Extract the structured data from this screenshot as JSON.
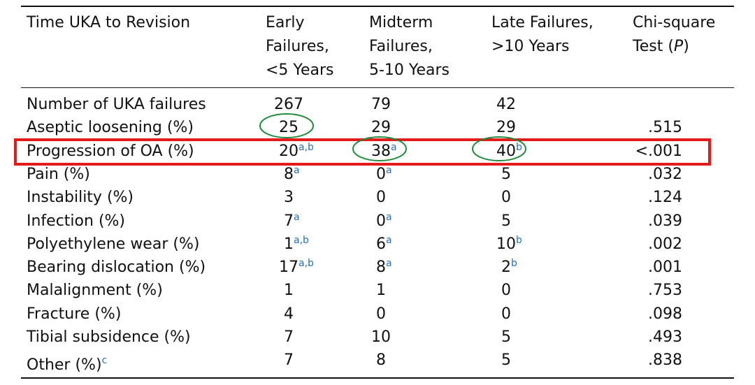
{
  "table": {
    "header": [
      [
        "Time UKA to Revision"
      ],
      [
        "Early",
        "Failures,",
        "<5 Years"
      ],
      [
        "Midterm",
        "Failures,",
        "5-10 Years"
      ],
      [
        "Late Failures,",
        ">10 Years"
      ],
      [
        "Chi-square",
        [
          "Test (",
          "P",
          ")"
        ]
      ]
    ],
    "rows": [
      {
        "label": "Number of UKA failures",
        "cells": [
          {
            "value": 267
          },
          {
            "value": 79
          },
          {
            "value": 42
          }
        ]
      },
      {
        "label": "Aseptic loosening (%)",
        "cells": [
          {
            "value": 25
          },
          {
            "value": 29
          },
          {
            "value": 29
          }
        ],
        "p": ".515"
      },
      {
        "label": "Progression of OA (%)",
        "cells": [
          {
            "value": 20,
            "sup": "a,b"
          },
          {
            "value": 38,
            "sup": "a"
          },
          {
            "value": 40,
            "sup": "b"
          }
        ],
        "p": "<.001"
      },
      {
        "label": "Pain (%)",
        "cells": [
          {
            "value": 8,
            "sup": "a"
          },
          {
            "value": 0,
            "sup": "a"
          },
          {
            "value": 5
          }
        ],
        "p": ".032"
      },
      {
        "label": "Instability (%)",
        "cells": [
          {
            "value": 3
          },
          {
            "value": 0
          },
          {
            "value": 0
          }
        ],
        "p": ".124"
      },
      {
        "label": "Infection (%)",
        "cells": [
          {
            "value": 7,
            "sup": "a"
          },
          {
            "value": 0,
            "sup": "a"
          },
          {
            "value": 5
          }
        ],
        "p": ".039"
      },
      {
        "label": "Polyethylene wear (%)",
        "cells": [
          {
            "value": 1,
            "sup": "a,b"
          },
          {
            "value": 6,
            "sup": "a"
          },
          {
            "value": 10,
            "sup": "b"
          }
        ],
        "p": ".002"
      },
      {
        "label": "Bearing dislocation (%)",
        "cells": [
          {
            "value": 17,
            "sup": "a,b"
          },
          {
            "value": 8,
            "sup": "a"
          },
          {
            "value": 2,
            "sup": "b"
          }
        ],
        "p": ".001"
      },
      {
        "label": "Malalignment (%)",
        "cells": [
          {
            "value": 1
          },
          {
            "value": 1
          },
          {
            "value": 0
          }
        ],
        "p": ".753"
      },
      {
        "label": "Fracture (%)",
        "cells": [
          {
            "value": 4
          },
          {
            "value": 0
          },
          {
            "value": 0
          }
        ],
        "p": ".098"
      },
      {
        "label": "Tibial subsidence (%)",
        "cells": [
          {
            "value": 7
          },
          {
            "value": 10
          },
          {
            "value": 5
          }
        ],
        "p": ".493"
      },
      {
        "label": "Other (%)",
        "label_sup": "c",
        "cells": [
          {
            "value": 7
          },
          {
            "value": 8
          },
          {
            "value": 5
          }
        ],
        "p": ".838"
      }
    ]
  }
}
